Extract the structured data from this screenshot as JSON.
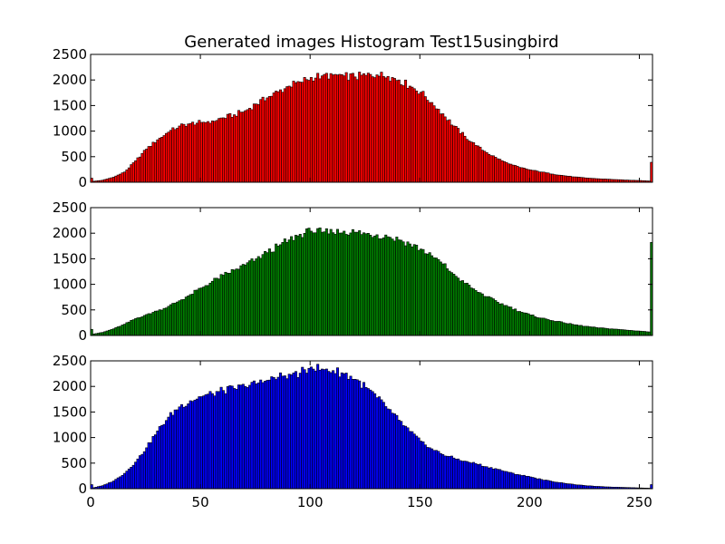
{
  "chart_data": {
    "type": "bar",
    "title": "Generated images Histogram Test15usingbird",
    "xlabel": "",
    "ylabel": "",
    "xlim": [
      0,
      256
    ],
    "ylim": [
      0,
      2500
    ],
    "x_ticks": [
      0,
      50,
      100,
      150,
      200,
      250
    ],
    "y_ticks": [
      0,
      500,
      1000,
      1500,
      2000,
      2500
    ],
    "bin_width": 1,
    "series": [
      {
        "name": "red",
        "color": "#ff0000",
        "keypoints": [
          [
            0,
            80
          ],
          [
            1,
            20
          ],
          [
            5,
            40
          ],
          [
            10,
            100
          ],
          [
            15,
            200
          ],
          [
            20,
            420
          ],
          [
            25,
            650
          ],
          [
            30,
            830
          ],
          [
            35,
            980
          ],
          [
            40,
            1100
          ],
          [
            45,
            1150
          ],
          [
            50,
            1170
          ],
          [
            55,
            1200
          ],
          [
            60,
            1260
          ],
          [
            65,
            1320
          ],
          [
            70,
            1400
          ],
          [
            75,
            1530
          ],
          [
            80,
            1650
          ],
          [
            85,
            1770
          ],
          [
            90,
            1880
          ],
          [
            95,
            1960
          ],
          [
            100,
            2050
          ],
          [
            105,
            2080
          ],
          [
            110,
            2100
          ],
          [
            115,
            2080
          ],
          [
            120,
            2060
          ],
          [
            125,
            2090
          ],
          [
            130,
            2100
          ],
          [
            135,
            2070
          ],
          [
            140,
            2000
          ],
          [
            145,
            1880
          ],
          [
            150,
            1760
          ],
          [
            155,
            1560
          ],
          [
            160,
            1340
          ],
          [
            165,
            1100
          ],
          [
            170,
            900
          ],
          [
            175,
            720
          ],
          [
            180,
            580
          ],
          [
            185,
            460
          ],
          [
            190,
            360
          ],
          [
            195,
            290
          ],
          [
            200,
            240
          ],
          [
            205,
            200
          ],
          [
            210,
            160
          ],
          [
            215,
            130
          ],
          [
            220,
            105
          ],
          [
            225,
            85
          ],
          [
            230,
            70
          ],
          [
            235,
            60
          ],
          [
            240,
            50
          ],
          [
            245,
            40
          ],
          [
            250,
            35
          ],
          [
            254,
            25
          ],
          [
            255,
            390
          ]
        ]
      },
      {
        "name": "green",
        "color": "#008000",
        "keypoints": [
          [
            0,
            120
          ],
          [
            1,
            30
          ],
          [
            5,
            60
          ],
          [
            10,
            130
          ],
          [
            15,
            220
          ],
          [
            20,
            330
          ],
          [
            25,
            410
          ],
          [
            30,
            480
          ],
          [
            35,
            570
          ],
          [
            40,
            680
          ],
          [
            45,
            800
          ],
          [
            50,
            930
          ],
          [
            55,
            1060
          ],
          [
            60,
            1180
          ],
          [
            65,
            1280
          ],
          [
            70,
            1380
          ],
          [
            75,
            1500
          ],
          [
            80,
            1620
          ],
          [
            85,
            1750
          ],
          [
            90,
            1870
          ],
          [
            95,
            1980
          ],
          [
            100,
            2040
          ],
          [
            105,
            2020
          ],
          [
            110,
            2010
          ],
          [
            115,
            2040
          ],
          [
            120,
            2020
          ],
          [
            125,
            1990
          ],
          [
            130,
            1970
          ],
          [
            135,
            1930
          ],
          [
            140,
            1870
          ],
          [
            145,
            1790
          ],
          [
            150,
            1690
          ],
          [
            155,
            1560
          ],
          [
            160,
            1400
          ],
          [
            165,
            1200
          ],
          [
            170,
            1020
          ],
          [
            175,
            880
          ],
          [
            180,
            760
          ],
          [
            185,
            650
          ],
          [
            190,
            560
          ],
          [
            195,
            470
          ],
          [
            200,
            400
          ],
          [
            205,
            340
          ],
          [
            210,
            290
          ],
          [
            215,
            250
          ],
          [
            220,
            210
          ],
          [
            225,
            180
          ],
          [
            230,
            155
          ],
          [
            235,
            135
          ],
          [
            240,
            120
          ],
          [
            245,
            100
          ],
          [
            250,
            85
          ],
          [
            254,
            70
          ],
          [
            255,
            1820
          ]
        ]
      },
      {
        "name": "blue",
        "color": "#0000ff",
        "keypoints": [
          [
            0,
            80
          ],
          [
            1,
            20
          ],
          [
            5,
            60
          ],
          [
            10,
            150
          ],
          [
            15,
            300
          ],
          [
            20,
            520
          ],
          [
            25,
            800
          ],
          [
            30,
            1130
          ],
          [
            35,
            1400
          ],
          [
            40,
            1600
          ],
          [
            45,
            1720
          ],
          [
            50,
            1800
          ],
          [
            55,
            1860
          ],
          [
            60,
            1920
          ],
          [
            65,
            1960
          ],
          [
            70,
            2000
          ],
          [
            75,
            2050
          ],
          [
            80,
            2120
          ],
          [
            85,
            2180
          ],
          [
            90,
            2240
          ],
          [
            95,
            2260
          ],
          [
            100,
            2380
          ],
          [
            105,
            2340
          ],
          [
            110,
            2310
          ],
          [
            115,
            2250
          ],
          [
            120,
            2140
          ],
          [
            125,
            1980
          ],
          [
            130,
            1780
          ],
          [
            135,
            1560
          ],
          [
            140,
            1340
          ],
          [
            145,
            1120
          ],
          [
            150,
            930
          ],
          [
            155,
            780
          ],
          [
            160,
            670
          ],
          [
            165,
            600
          ],
          [
            170,
            540
          ],
          [
            175,
            490
          ],
          [
            180,
            430
          ],
          [
            185,
            380
          ],
          [
            190,
            320
          ],
          [
            195,
            270
          ],
          [
            200,
            230
          ],
          [
            205,
            180
          ],
          [
            210,
            140
          ],
          [
            215,
            110
          ],
          [
            220,
            80
          ],
          [
            225,
            60
          ],
          [
            230,
            45
          ],
          [
            235,
            35
          ],
          [
            240,
            28
          ],
          [
            245,
            22
          ],
          [
            250,
            15
          ],
          [
            254,
            10
          ],
          [
            255,
            80
          ]
        ]
      }
    ]
  }
}
